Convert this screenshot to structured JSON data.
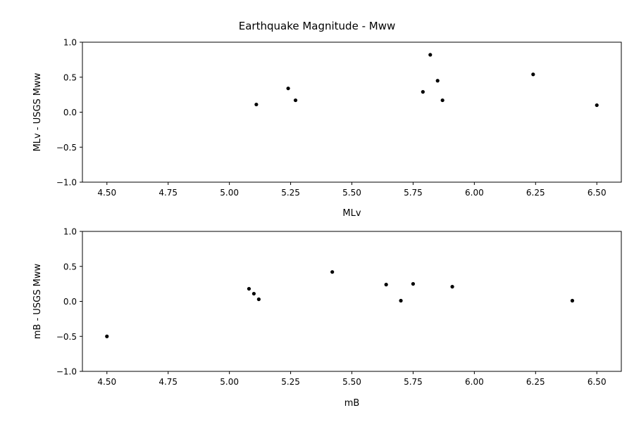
{
  "figure": {
    "title": "Earthquake Magnitude - Mww"
  },
  "chart_data": [
    {
      "type": "scatter",
      "xlabel": "MLv",
      "ylabel": "MLv - USGS Mww",
      "xlim": [
        4.4,
        6.6
      ],
      "ylim": [
        -1.0,
        1.0
      ],
      "xticks": [
        "4.50",
        "4.75",
        "5.00",
        "5.25",
        "5.50",
        "5.75",
        "6.00",
        "6.25",
        "6.50"
      ],
      "yticks": [
        "−1.0",
        "−0.5",
        "0.0",
        "0.5",
        "1.0"
      ],
      "grid": false,
      "marker_color": "#000000",
      "points": [
        {
          "x": 5.11,
          "y": 0.11
        },
        {
          "x": 5.24,
          "y": 0.34
        },
        {
          "x": 5.27,
          "y": 0.17
        },
        {
          "x": 5.79,
          "y": 0.29
        },
        {
          "x": 5.82,
          "y": 0.82
        },
        {
          "x": 5.85,
          "y": 0.45
        },
        {
          "x": 5.87,
          "y": 0.17
        },
        {
          "x": 6.24,
          "y": 0.54
        },
        {
          "x": 6.5,
          "y": 0.1
        }
      ]
    },
    {
      "type": "scatter",
      "xlabel": "mB",
      "ylabel": "mB - USGS Mww",
      "xlim": [
        4.4,
        6.6
      ],
      "ylim": [
        -1.0,
        1.0
      ],
      "xticks": [
        "4.50",
        "4.75",
        "5.00",
        "5.25",
        "5.50",
        "5.75",
        "6.00",
        "6.25",
        "6.50"
      ],
      "yticks": [
        "−1.0",
        "−0.5",
        "0.0",
        "0.5",
        "1.0"
      ],
      "grid": false,
      "marker_color": "#000000",
      "points": [
        {
          "x": 4.5,
          "y": -0.5
        },
        {
          "x": 5.08,
          "y": 0.18
        },
        {
          "x": 5.1,
          "y": 0.11
        },
        {
          "x": 5.12,
          "y": 0.03
        },
        {
          "x": 5.42,
          "y": 0.42
        },
        {
          "x": 5.64,
          "y": 0.24
        },
        {
          "x": 5.7,
          "y": 0.01
        },
        {
          "x": 5.75,
          "y": 0.25
        },
        {
          "x": 5.91,
          "y": 0.21
        },
        {
          "x": 6.4,
          "y": 0.01
        }
      ]
    }
  ]
}
